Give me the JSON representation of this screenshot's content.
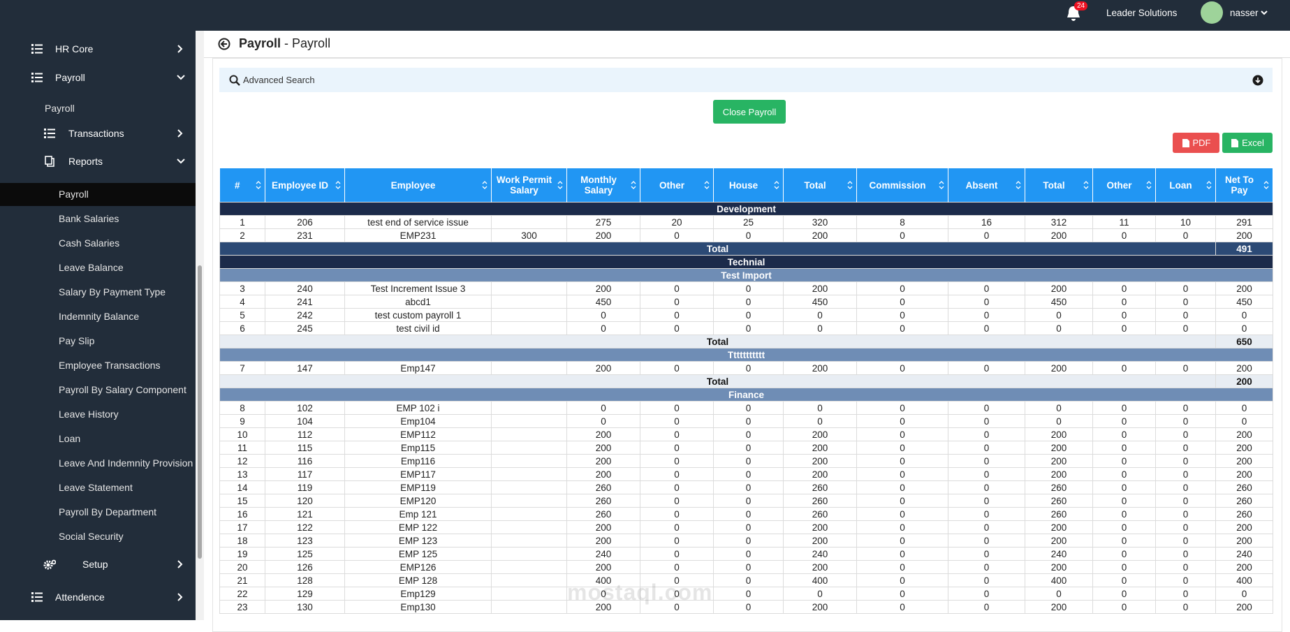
{
  "header": {
    "notifications": 24,
    "company": "Leader Solutions",
    "user": "nasser"
  },
  "sidebar": {
    "items": [
      "HR Core",
      "Payroll",
      "Payroll",
      "Transactions",
      "Reports",
      "Payroll",
      "Bank Salaries",
      "Cash Salaries",
      "Leave Balance",
      "Salary By Payment Type",
      "Indemnity Balance",
      "Pay Slip",
      "Employee Transactions",
      "Payroll By Salary Component",
      "Leave History",
      "Loan",
      "Leave And Indemnity Provision",
      "Leave Statement",
      "Payroll By Department",
      "Social Security",
      "Setup",
      "Attendence"
    ]
  },
  "page": {
    "title": "Payroll",
    "subtitle": "- Payroll",
    "search": "Advanced Search",
    "close_button": "Close Payroll",
    "pdf_button": "PDF",
    "excel_button": "Excel"
  },
  "table": {
    "columns": [
      "#",
      "Employee ID",
      "Employee",
      "Work Permit Salary",
      "Monthly Salary",
      "Other",
      "House",
      "Total",
      "Commission",
      "Absent",
      "Total",
      "Other",
      "Loan",
      "Net To Pay"
    ],
    "rows": [
      {
        "group": "Development",
        "level": 1
      },
      [
        1,
        206,
        "test end of service issue",
        null,
        275,
        20,
        25,
        320,
        8,
        16,
        312,
        11,
        10,
        291
      ],
      [
        2,
        231,
        "EMP231",
        300,
        200,
        0,
        0,
        200,
        0,
        0,
        200,
        0,
        0,
        200
      ],
      {
        "label": "Total",
        "value": 491,
        "level": 1
      },
      {
        "group": "Technial",
        "level": 1
      },
      {
        "group": "Test Import",
        "level": 2
      },
      [
        3,
        240,
        "Test Increment Issue 3",
        null,
        200,
        0,
        0,
        200,
        0,
        0,
        200,
        0,
        0,
        200
      ],
      [
        4,
        241,
        "abcd1",
        null,
        450,
        0,
        0,
        450,
        0,
        0,
        450,
        0,
        0,
        450
      ],
      [
        5,
        242,
        "test custom payroll 1",
        null,
        0,
        0,
        0,
        0,
        0,
        0,
        0,
        0,
        0,
        0
      ],
      [
        6,
        245,
        "test civil id",
        null,
        0,
        0,
        0,
        0,
        0,
        0,
        0,
        0,
        0,
        0
      ],
      {
        "label": "Total",
        "value": 650,
        "level": 2
      },
      {
        "group": "Ttttttttttt",
        "level": 2
      },
      [
        7,
        147,
        "Emp147",
        null,
        200,
        0,
        0,
        200,
        0,
        0,
        200,
        0,
        0,
        200
      ],
      {
        "label": "Total",
        "value": 200,
        "level": 2
      },
      {
        "group": "Finance",
        "level": 2
      },
      [
        8,
        102,
        "EMP 102 i",
        null,
        0,
        0,
        0,
        0,
        0,
        0,
        0,
        0,
        0,
        0
      ],
      [
        9,
        104,
        "Emp104",
        null,
        0,
        0,
        0,
        0,
        0,
        0,
        0,
        0,
        0,
        0
      ],
      [
        10,
        112,
        "EMP112",
        null,
        200,
        0,
        0,
        200,
        0,
        0,
        200,
        0,
        0,
        200
      ],
      [
        11,
        115,
        "Emp115",
        null,
        200,
        0,
        0,
        200,
        0,
        0,
        200,
        0,
        0,
        200
      ],
      [
        12,
        116,
        "Emp116",
        null,
        200,
        0,
        0,
        200,
        0,
        0,
        200,
        0,
        0,
        200
      ],
      [
        13,
        117,
        "EMP117",
        null,
        200,
        0,
        0,
        200,
        0,
        0,
        200,
        0,
        0,
        200
      ],
      [
        14,
        119,
        "EMP119",
        null,
        260,
        0,
        0,
        260,
        0,
        0,
        260,
        0,
        0,
        260
      ],
      [
        15,
        120,
        "EMP120",
        null,
        260,
        0,
        0,
        260,
        0,
        0,
        260,
        0,
        0,
        260
      ],
      [
        16,
        121,
        "Emp 121",
        null,
        260,
        0,
        0,
        260,
        0,
        0,
        260,
        0,
        0,
        260
      ],
      [
        17,
        122,
        "EMP 122",
        null,
        200,
        0,
        0,
        200,
        0,
        0,
        200,
        0,
        0,
        200
      ],
      [
        18,
        123,
        "EMP 123",
        null,
        200,
        0,
        0,
        200,
        0,
        0,
        200,
        0,
        0,
        200
      ],
      [
        19,
        125,
        "EMP 125",
        null,
        240,
        0,
        0,
        240,
        0,
        0,
        240,
        0,
        0,
        240
      ],
      [
        20,
        126,
        "EMP126",
        null,
        200,
        0,
        0,
        200,
        0,
        0,
        200,
        0,
        0,
        200
      ],
      [
        21,
        128,
        "EMP 128",
        null,
        400,
        0,
        0,
        400,
        0,
        0,
        400,
        0,
        0,
        400
      ],
      [
        22,
        129,
        "Emp129",
        null,
        0,
        0,
        0,
        0,
        0,
        0,
        0,
        0,
        0,
        0
      ],
      [
        23,
        130,
        "Emp130",
        null,
        200,
        0,
        0,
        200,
        0,
        0,
        200,
        0,
        0,
        200
      ]
    ]
  },
  "watermark": "mostaql.com"
}
